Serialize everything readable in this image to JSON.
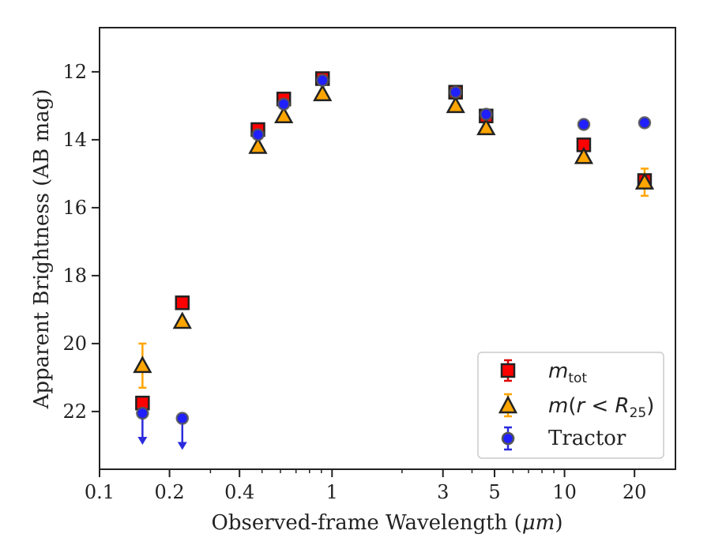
{
  "chart_data": {
    "type": "scatter",
    "xlabel_main": "Observed-frame Wavelength (",
    "xlabel_unit": "μm",
    "xlabel_close": ")",
    "ylabel": "Apparent Brightness (AB mag)",
    "xscale": "log",
    "xlim": [
      0.1,
      30
    ],
    "ylim": [
      23.7,
      10.7
    ],
    "y_inverted": true,
    "x_major_ticks": [
      0.1,
      0.2,
      0.4,
      1,
      3,
      5,
      10,
      20
    ],
    "x_tick_labels": [
      "0.1",
      "0.2",
      "0.4",
      "1",
      "3",
      "5",
      "10",
      "20"
    ],
    "y_ticks": [
      12,
      14,
      16,
      18,
      20,
      22
    ],
    "y_tick_labels": [
      "12",
      "14",
      "16",
      "18",
      "20",
      "22"
    ],
    "grid": false,
    "legend_position": "lower-right",
    "series": [
      {
        "key": "mtot",
        "legend_parts": [
          "m",
          "tot"
        ],
        "marker": "square",
        "face_color": "#ff0000",
        "edge_color": "#222222",
        "error_color": "#dd0000",
        "points": [
          {
            "x": 0.153,
            "y": 21.75,
            "err": 0.05
          },
          {
            "x": 0.227,
            "y": 18.8,
            "err": 0.04
          },
          {
            "x": 0.48,
            "y": 13.7,
            "err": 0.05
          },
          {
            "x": 0.62,
            "y": 12.8,
            "err": 0.04
          },
          {
            "x": 0.91,
            "y": 12.2,
            "err": 0.04
          },
          {
            "x": 3.4,
            "y": 12.6,
            "err": 0.04
          },
          {
            "x": 4.6,
            "y": 13.3,
            "err": 0.04
          },
          {
            "x": 12.1,
            "y": 14.15,
            "err": 0.05
          },
          {
            "x": 22.1,
            "y": 15.2,
            "err": 0.1
          }
        ]
      },
      {
        "key": "mr25",
        "legend_parts": [
          "m",
          "(",
          "r",
          " < ",
          "R",
          "25",
          ")"
        ],
        "marker": "triangle",
        "face_color": "#ffa500",
        "edge_color": "#222222",
        "error_color": "#ffa500",
        "points": [
          {
            "x": 0.153,
            "y": 20.65,
            "err": 0.65
          },
          {
            "x": 0.227,
            "y": 19.35,
            "err": 0.05
          },
          {
            "x": 0.48,
            "y": 14.2,
            "err": 0.05
          },
          {
            "x": 0.62,
            "y": 13.3,
            "err": 0.04
          },
          {
            "x": 0.91,
            "y": 12.65,
            "err": 0.04
          },
          {
            "x": 3.4,
            "y": 13.0,
            "err": 0.04
          },
          {
            "x": 4.6,
            "y": 13.65,
            "err": 0.04
          },
          {
            "x": 12.1,
            "y": 14.5,
            "err": 0.05
          },
          {
            "x": 22.1,
            "y": 15.25,
            "err": 0.4
          }
        ]
      },
      {
        "key": "tractor",
        "legend_label": "Tractor",
        "marker": "circle",
        "face_color": "#1f1fff",
        "edge_color": "#555555",
        "error_color": "#2b2bdd",
        "points": [
          {
            "x": 0.153,
            "y": 22.05,
            "err": 0,
            "upper_limit": true
          },
          {
            "x": 0.227,
            "y": 22.2,
            "err": 0,
            "upper_limit": true
          },
          {
            "x": 0.48,
            "y": 13.85,
            "err": 0.04
          },
          {
            "x": 0.62,
            "y": 12.95,
            "err": 0.04
          },
          {
            "x": 0.91,
            "y": 12.25,
            "err": 0.04
          },
          {
            "x": 3.4,
            "y": 12.6,
            "err": 0.04
          },
          {
            "x": 4.6,
            "y": 13.25,
            "err": 0.04
          },
          {
            "x": 12.1,
            "y": 13.55,
            "err": 0.04
          },
          {
            "x": 22.1,
            "y": 13.5,
            "err": 0.04
          }
        ]
      }
    ]
  }
}
